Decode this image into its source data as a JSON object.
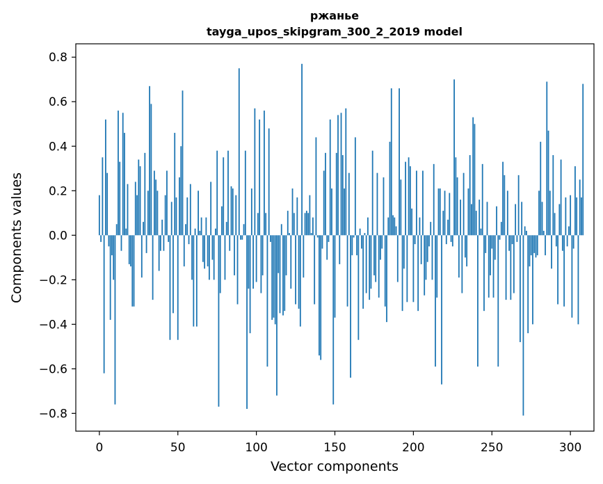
{
  "chart_data": {
    "type": "bar",
    "title": "ржанье",
    "subtitle": "tayga_upos_skipgram_300_2_2019 model",
    "xlabel": "Vector components",
    "ylabel": "Components values",
    "xlim": [
      -15,
      315
    ],
    "ylim": [
      -0.88,
      0.86
    ],
    "xticks": [
      0,
      50,
      100,
      150,
      200,
      250,
      300
    ],
    "yticks": [
      -0.8,
      -0.6,
      -0.4,
      -0.2,
      0.0,
      0.2,
      0.4,
      0.6,
      0.8
    ],
    "ytick_labels": [
      "−0.8",
      "−0.6",
      "−0.4",
      "−0.2",
      "0.0",
      "0.2",
      "0.4",
      "0.6",
      "0.8"
    ],
    "color": "#1f77b4",
    "grid": false,
    "values": [
      0.18,
      -0.03,
      0.35,
      -0.62,
      0.52,
      0.28,
      -0.05,
      -0.38,
      -0.09,
      -0.2,
      -0.76,
      0.05,
      0.56,
      0.33,
      -0.07,
      0.55,
      0.46,
      0.03,
      0.23,
      -0.13,
      -0.14,
      -0.32,
      -0.32,
      0.24,
      0.18,
      0.34,
      0.31,
      -0.19,
      0.06,
      0.37,
      -0.08,
      0.2,
      0.67,
      0.59,
      -0.29,
      0.29,
      0.25,
      0.2,
      -0.16,
      -0.07,
      0.07,
      -0.07,
      0.18,
      0.29,
      -0.03,
      -0.47,
      0.15,
      -0.35,
      0.46,
      0.17,
      -0.47,
      0.26,
      0.4,
      0.65,
      -0.14,
      0.05,
      0.17,
      -0.04,
      0.23,
      -0.2,
      -0.41,
      0.03,
      -0.41,
      0.2,
      0.02,
      0.08,
      -0.12,
      -0.15,
      0.08,
      -0.14,
      -0.2,
      0.24,
      -0.11,
      -0.2,
      0.03,
      0.38,
      -0.77,
      -0.26,
      0.13,
      0.35,
      -0.2,
      0.06,
      0.38,
      -0.07,
      0.22,
      0.21,
      -0.18,
      0.18,
      -0.31,
      0.75,
      -0.02,
      -0.02,
      0.05,
      0.38,
      -0.78,
      -0.24,
      -0.44,
      0.21,
      -0.24,
      0.57,
      -0.21,
      0.1,
      0.52,
      -0.26,
      -0.18,
      0.56,
      0.1,
      -0.59,
      0.48,
      -0.03,
      -0.38,
      -0.37,
      -0.4,
      -0.72,
      -0.17,
      -0.35,
      0.05,
      -0.36,
      -0.34,
      -0.18,
      0.11,
      0.01,
      -0.24,
      0.21,
      0.1,
      -0.31,
      0.17,
      -0.33,
      -0.41,
      0.77,
      -0.19,
      0.1,
      0.11,
      0.1,
      0.18,
      0.01,
      0.08,
      -0.31,
      0.44,
      -0.01,
      -0.54,
      -0.56,
      -0.06,
      0.29,
      0.37,
      -0.11,
      -0.03,
      0.52,
      0.21,
      -0.76,
      -0.37,
      0.37,
      0.54,
      -0.13,
      0.55,
      0.36,
      0.21,
      0.57,
      -0.32,
      0.28,
      -0.64,
      -0.09,
      -0.01,
      0.44,
      -0.09,
      -0.47,
      0.03,
      -0.06,
      -0.33,
      0.01,
      -0.26,
      0.08,
      -0.29,
      -0.24,
      0.38,
      -0.18,
      -0.21,
      0.28,
      -0.28,
      -0.11,
      -0.06,
      0.26,
      -0.32,
      -0.39,
      0.08,
      0.42,
      0.66,
      0.09,
      0.08,
      0.04,
      -0.21,
      0.66,
      0.25,
      -0.34,
      -0.15,
      0.33,
      -0.3,
      0.35,
      0.31,
      0.12,
      -0.3,
      -0.04,
      0.29,
      -0.34,
      0.08,
      -0.13,
      0.29,
      -0.27,
      -0.2,
      -0.12,
      -0.05,
      0.06,
      -0.2,
      0.32,
      -0.59,
      -0.28,
      0.21,
      0.21,
      -0.67,
      0.11,
      0.2,
      -0.04,
      0.07,
      0.19,
      -0.03,
      -0.05,
      0.7,
      0.35,
      0.26,
      -0.19,
      0.16,
      -0.26,
      0.28,
      -0.1,
      -0.14,
      0.21,
      0.36,
      0.14,
      0.53,
      0.5,
      0.11,
      -0.59,
      0.16,
      0.03,
      0.32,
      -0.34,
      -0.08,
      0.15,
      -0.28,
      -0.18,
      -0.06,
      -0.28,
      -0.11,
      0.13,
      -0.59,
      -0.02,
      0.06,
      0.33,
      0.27,
      -0.29,
      0.2,
      -0.07,
      -0.29,
      -0.04,
      -0.26,
      0.14,
      -0.03,
      0.27,
      -0.48,
      0.15,
      -0.81,
      0.04,
      0.02,
      -0.44,
      -0.14,
      -0.09,
      -0.4,
      -0.08,
      -0.1,
      -0.09,
      0.2,
      0.42,
      0.15,
      0.02,
      -0.09,
      0.69,
      0.47,
      0.2,
      -0.15,
      0.36,
      0.1,
      -0.05,
      -0.31,
      0.14,
      0.34,
      -0.07,
      -0.32,
      0.17,
      -0.05,
      0.04,
      0.18,
      -0.37,
      -0.06,
      0.31,
      0.17,
      -0.4,
      0.25,
      0.17,
      0.68
    ]
  }
}
